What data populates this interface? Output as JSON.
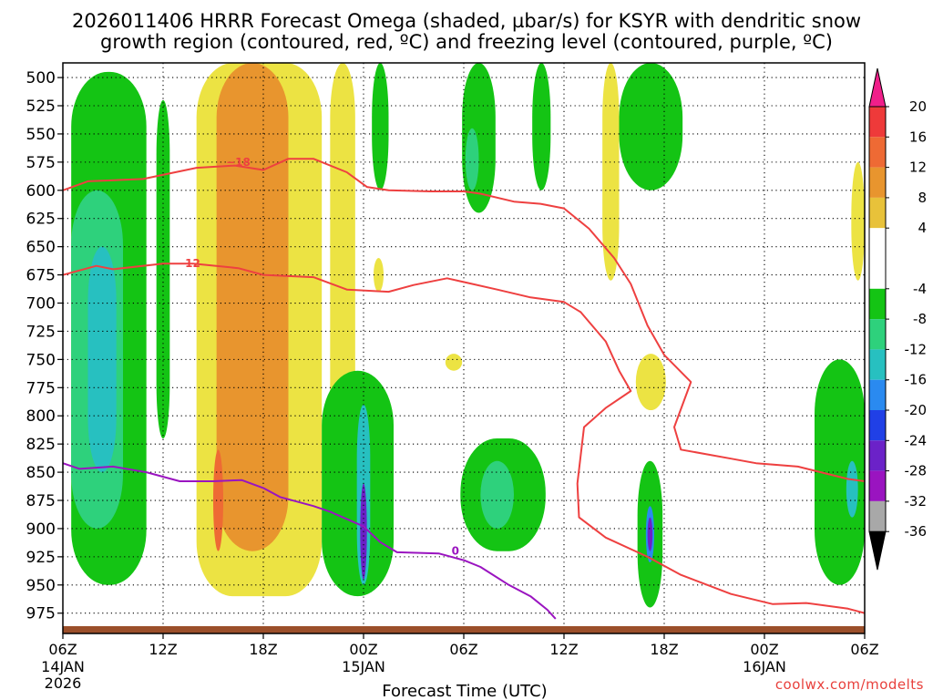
{
  "chart_data": {
    "type": "heatmap",
    "title_line1": "2026011406 HRRR Forecast Omega (shaded, µbar/s) for KSYR with dendritic snow",
    "title_line2": "growth region (contoured, red, ºC) and freezing level (contoured, purple, ºC)",
    "xlabel": "Forecast Time (UTC)",
    "credit": "coolwx.com/modelts",
    "x_ticks": [
      {
        "hour": 0,
        "label": "06Z",
        "sub1": "14JAN",
        "sub2": "2026"
      },
      {
        "hour": 6,
        "label": "12Z",
        "sub1": "",
        "sub2": ""
      },
      {
        "hour": 12,
        "label": "18Z",
        "sub1": "",
        "sub2": ""
      },
      {
        "hour": 18,
        "label": "00Z",
        "sub1": "15JAN",
        "sub2": ""
      },
      {
        "hour": 24,
        "label": "06Z",
        "sub1": "",
        "sub2": ""
      },
      {
        "hour": 30,
        "label": "12Z",
        "sub1": "",
        "sub2": ""
      },
      {
        "hour": 36,
        "label": "18Z",
        "sub1": "",
        "sub2": ""
      },
      {
        "hour": 42,
        "label": "00Z",
        "sub1": "16JAN",
        "sub2": ""
      },
      {
        "hour": 48,
        "label": "06Z",
        "sub1": "",
        "sub2": ""
      }
    ],
    "xlim": [
      0,
      48
    ],
    "y_levels": [
      500,
      525,
      550,
      575,
      600,
      625,
      650,
      675,
      700,
      725,
      750,
      775,
      800,
      825,
      850,
      875,
      900,
      925,
      950,
      975
    ],
    "y_tick_labels": [
      "500",
      "525",
      "550",
      "575",
      "600",
      "625",
      "650",
      "675",
      "700",
      "725",
      "750",
      "775",
      "800",
      "825",
      "850",
      "875",
      "900",
      "925",
      "950",
      "975"
    ],
    "ylim": [
      487,
      993
    ],
    "colorbar": {
      "labels": [
        "20",
        "16",
        "12",
        "8",
        "4",
        "-4",
        "-8",
        "-12",
        "-16",
        "-20",
        "-24",
        "-28",
        "-32",
        "-36"
      ],
      "bins": [
        {
          "lo": 20,
          "hi": 24,
          "color": "#f01f8a"
        },
        {
          "lo": 16,
          "hi": 20,
          "color": "#ee3a3a"
        },
        {
          "lo": 12,
          "hi": 16,
          "color": "#ee6a34"
        },
        {
          "lo": 8,
          "hi": 12,
          "color": "#e8952e"
        },
        {
          "lo": 4,
          "hi": 8,
          "color": "#e8c23a"
        },
        {
          "lo": 0,
          "hi": 4,
          "color": "#ece343"
        },
        {
          "lo": -4,
          "hi": 4,
          "color": "#ffffff"
        },
        {
          "lo": -8,
          "hi": -4,
          "color": "#14c414"
        },
        {
          "lo": -12,
          "hi": -8,
          "color": "#2ed17c"
        },
        {
          "lo": -16,
          "hi": -12,
          "color": "#27c0c0"
        },
        {
          "lo": -20,
          "hi": -16,
          "color": "#2a8af0"
        },
        {
          "lo": -24,
          "hi": -20,
          "color": "#2040e6"
        },
        {
          "lo": -28,
          "hi": -24,
          "color": "#6b22c8"
        },
        {
          "lo": -32,
          "hi": -28,
          "color": "#9a14c0"
        },
        {
          "lo": -36,
          "hi": -32,
          "color": "#a8a8a8"
        },
        {
          "lo": -40,
          "hi": -36,
          "color": "#000000"
        }
      ]
    },
    "omega_regions": [
      {
        "level": "-4",
        "color": "#14c414",
        "hour": [
          0.5,
          5
        ],
        "p": [
          495,
          950
        ]
      },
      {
        "level": "-8",
        "color": "#2ed17c",
        "hour": [
          0.5,
          3.6
        ],
        "p": [
          600,
          900
        ]
      },
      {
        "level": "-12",
        "color": "#27c0c0",
        "hour": [
          1.5,
          3.2
        ],
        "p": [
          650,
          850
        ]
      },
      {
        "level": "-4",
        "color": "#14c414",
        "hour": [
          5.6,
          6.4
        ],
        "p": [
          520,
          820
        ]
      },
      {
        "level": "4",
        "color": "#ece343",
        "hour": [
          8,
          15.5
        ],
        "p": [
          487,
          960
        ]
      },
      {
        "level": "8",
        "color": "#e8952e",
        "hour": [
          9.2,
          13.5
        ],
        "p": [
          487,
          920
        ]
      },
      {
        "level": "12",
        "color": "#ee6a34",
        "hour": [
          9,
          9.6
        ],
        "p": [
          830,
          920
        ]
      },
      {
        "level": "4",
        "color": "#ece343",
        "hour": [
          16,
          17.5
        ],
        "p": [
          487,
          870
        ]
      },
      {
        "level": "-4",
        "color": "#14c414",
        "hour": [
          15.5,
          19.8
        ],
        "p": [
          760,
          960
        ]
      },
      {
        "level": "-12",
        "color": "#27c0c0",
        "hour": [
          17.6,
          18.4
        ],
        "p": [
          790,
          950
        ]
      },
      {
        "level": "-24",
        "color": "#6b22c8",
        "hour": [
          17.8,
          18.2
        ],
        "p": [
          860,
          945
        ]
      },
      {
        "level": "-4",
        "color": "#14c414",
        "hour": [
          18.5,
          19.5
        ],
        "p": [
          487,
          600
        ]
      },
      {
        "level": "4",
        "color": "#ece343",
        "hour": [
          18.6,
          19.2
        ],
        "p": [
          660,
          690
        ]
      },
      {
        "level": "4",
        "color": "#ece343",
        "hour": [
          22.9,
          23.9
        ],
        "p": [
          745,
          760
        ]
      },
      {
        "level": "-4",
        "color": "#14c414",
        "hour": [
          23.9,
          25.9
        ],
        "p": [
          487,
          620
        ]
      },
      {
        "level": "-8",
        "color": "#2ed17c",
        "hour": [
          24.1,
          24.9
        ],
        "p": [
          545,
          600
        ]
      },
      {
        "level": "-4",
        "color": "#14c414",
        "hour": [
          23.8,
          28.9
        ],
        "p": [
          820,
          920
        ]
      },
      {
        "level": "-8",
        "color": "#2ed17c",
        "hour": [
          25,
          27
        ],
        "p": [
          840,
          900
        ]
      },
      {
        "level": "-4",
        "color": "#14c414",
        "hour": [
          28.1,
          29.2
        ],
        "p": [
          487,
          600
        ]
      },
      {
        "level": "4",
        "color": "#ece343",
        "hour": [
          32.3,
          33.3
        ],
        "p": [
          487,
          680
        ]
      },
      {
        "level": "-4",
        "color": "#14c414",
        "hour": [
          33.3,
          37.1
        ],
        "p": [
          487,
          600
        ]
      },
      {
        "level": "-4",
        "color": "#14c414",
        "hour": [
          34.4,
          35.9
        ],
        "p": [
          840,
          970
        ]
      },
      {
        "level": "-16",
        "color": "#2a8af0",
        "hour": [
          34.9,
          35.4
        ],
        "p": [
          880,
          930
        ]
      },
      {
        "level": "-24",
        "color": "#6b22c8",
        "hour": [
          35,
          35.3
        ],
        "p": [
          890,
          920
        ]
      },
      {
        "level": "4",
        "color": "#ece343",
        "hour": [
          34.3,
          36.1
        ],
        "p": [
          745,
          795
        ]
      },
      {
        "level": "4",
        "color": "#ece343",
        "hour": [
          47.2,
          48
        ],
        "p": [
          575,
          680
        ]
      },
      {
        "level": "-4",
        "color": "#14c414",
        "hour": [
          45,
          48
        ],
        "p": [
          750,
          950
        ]
      },
      {
        "level": "-12",
        "color": "#27c0c0",
        "hour": [
          46.9,
          47.6
        ],
        "p": [
          840,
          890
        ]
      }
    ],
    "series": [
      {
        "name": "-18",
        "color": "#ee4040",
        "label_hour": 10.5,
        "label_p": 575,
        "points": [
          [
            0,
            600
          ],
          [
            1.5,
            592
          ],
          [
            4.8,
            590
          ],
          [
            8,
            580
          ],
          [
            10.3,
            578
          ],
          [
            12,
            582
          ],
          [
            13.5,
            572
          ],
          [
            15,
            572
          ],
          [
            17,
            584
          ],
          [
            18.2,
            597
          ],
          [
            19.5,
            600
          ],
          [
            22,
            601
          ],
          [
            24,
            601
          ],
          [
            25,
            603
          ],
          [
            27,
            610
          ],
          [
            28.6,
            612
          ],
          [
            30,
            616
          ],
          [
            31.5,
            634
          ],
          [
            33,
            660
          ],
          [
            34,
            683
          ],
          [
            35,
            720
          ],
          [
            36,
            746
          ],
          [
            37.6,
            770
          ],
          [
            36.6,
            810
          ],
          [
            37,
            830
          ],
          [
            40,
            838
          ],
          [
            41.5,
            842
          ],
          [
            44,
            845
          ],
          [
            47,
            856
          ],
          [
            48,
            858
          ]
        ]
      },
      {
        "name": "-12",
        "color": "#ee4040",
        "label_hour": 7.5,
        "label_p": 665,
        "points": [
          [
            0,
            675
          ],
          [
            2,
            667
          ],
          [
            3,
            670
          ],
          [
            6,
            665
          ],
          [
            7.8,
            665
          ],
          [
            10.5,
            669
          ],
          [
            12,
            675
          ],
          [
            15,
            677
          ],
          [
            17,
            688
          ],
          [
            19.5,
            690
          ],
          [
            21,
            684
          ],
          [
            23,
            678
          ],
          [
            26,
            688
          ],
          [
            28,
            695
          ],
          [
            30,
            699
          ],
          [
            31,
            708
          ],
          [
            32.5,
            734
          ],
          [
            33.3,
            760
          ],
          [
            34,
            778
          ],
          [
            32.5,
            793
          ],
          [
            31.2,
            810
          ],
          [
            30.8,
            860
          ],
          [
            30.9,
            890
          ],
          [
            32.5,
            908
          ],
          [
            35,
            925
          ],
          [
            37,
            941
          ],
          [
            40,
            958
          ],
          [
            42.5,
            967
          ],
          [
            44.5,
            966
          ],
          [
            47,
            971
          ],
          [
            48,
            975
          ]
        ]
      },
      {
        "name": "0",
        "color": "#9a14c0",
        "label_hour": 23.5,
        "label_p": 920,
        "points": [
          [
            0,
            842
          ],
          [
            1,
            847
          ],
          [
            3,
            845
          ],
          [
            5,
            850
          ],
          [
            7,
            858
          ],
          [
            9,
            858
          ],
          [
            10.7,
            857
          ],
          [
            12,
            864
          ],
          [
            13,
            872
          ],
          [
            15,
            880
          ],
          [
            16,
            885
          ],
          [
            18,
            898
          ],
          [
            19,
            912
          ],
          [
            20,
            921
          ],
          [
            22.5,
            922
          ],
          [
            24,
            928
          ],
          [
            25,
            934
          ],
          [
            26.7,
            950
          ],
          [
            28,
            960
          ],
          [
            29,
            972
          ],
          [
            29.5,
            980
          ]
        ]
      }
    ]
  }
}
